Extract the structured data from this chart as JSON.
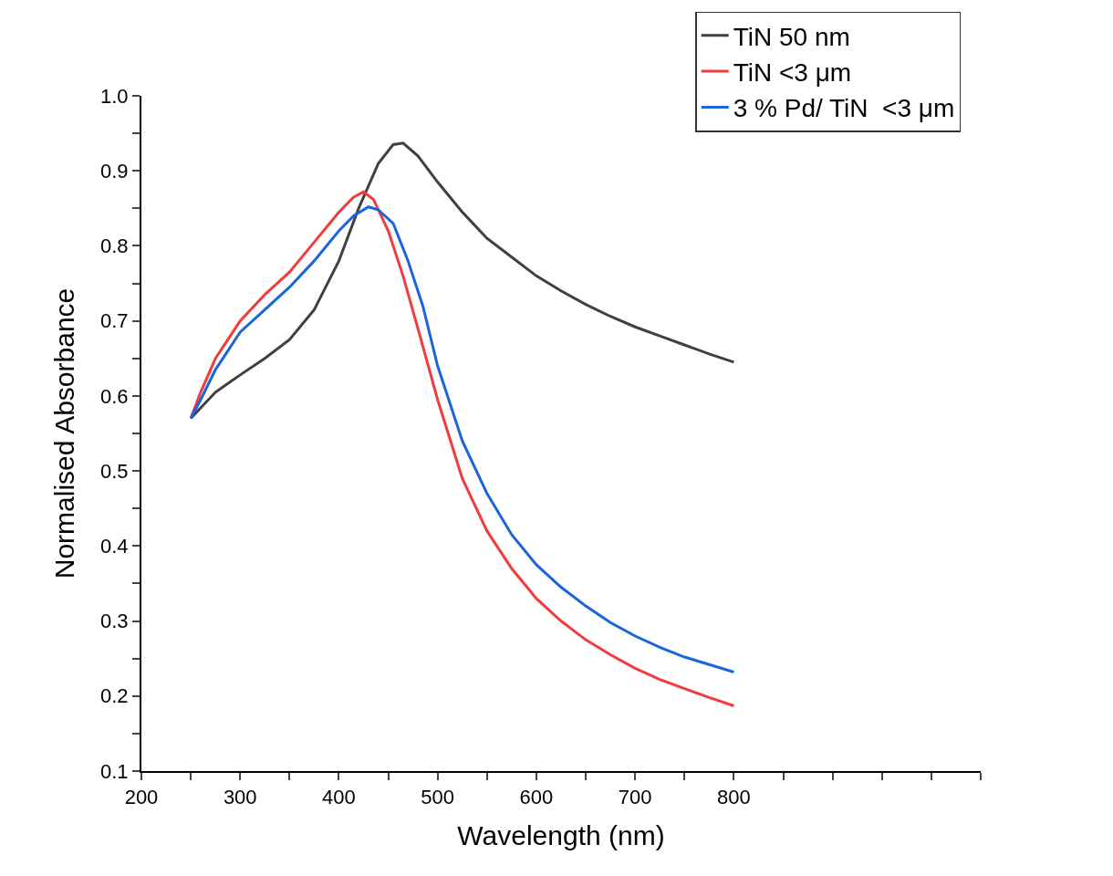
{
  "chart_data": {
    "type": "line",
    "xlabel": "Wavelength (nm)",
    "ylabel": "Normalised Absorbance",
    "xlim": [
      200,
      1050
    ],
    "xticks": [
      200,
      {
        "value": 250,
        "label": null
      },
      300,
      {
        "value": 350,
        "label": null
      },
      400,
      {
        "value": 450,
        "label": null
      },
      500,
      {
        "value": 550,
        "label": null
      },
      600,
      {
        "value": 650,
        "label": null
      },
      700,
      {
        "value": 750,
        "label": null
      },
      800,
      {
        "value": 850,
        "label": null
      },
      {
        "value": 900,
        "label": null
      },
      {
        "value": 950,
        "label": null
      },
      {
        "value": 1000,
        "label": null
      },
      {
        "value": 1050,
        "label": null
      }
    ],
    "ylim": [
      0.1,
      1.0
    ],
    "yticks": [
      0.1,
      {
        "value": 0.15,
        "label": null
      },
      0.2,
      {
        "value": 0.25,
        "label": null
      },
      0.3,
      {
        "value": 0.35,
        "label": null
      },
      0.4,
      {
        "value": 0.45,
        "label": null
      },
      0.5,
      {
        "value": 0.55,
        "label": null
      },
      0.6,
      {
        "value": 0.65,
        "label": null
      },
      0.7,
      {
        "value": 0.75,
        "label": null
      },
      0.8,
      {
        "value": 0.85,
        "label": null
      },
      0.9,
      {
        "value": 0.95,
        "label": null
      },
      {
        "value": 1.0,
        "label": "1.0"
      }
    ],
    "grid": false,
    "legend": "top right",
    "marker": "none",
    "line_style": "solid",
    "series": [
      {
        "name": "TiN 50 nm",
        "color": "#404040",
        "x": [
          250,
          275,
          300,
          325,
          350,
          375,
          400,
          420,
          440,
          455,
          465,
          480,
          500,
          525,
          550,
          575,
          600,
          625,
          650,
          675,
          700,
          725,
          750,
          775,
          800
        ],
        "values": [
          0.57,
          0.605,
          0.628,
          0.65,
          0.675,
          0.715,
          0.78,
          0.85,
          0.91,
          0.935,
          0.937,
          0.92,
          0.885,
          0.845,
          0.81,
          0.785,
          0.76,
          0.74,
          0.722,
          0.706,
          0.692,
          0.68,
          0.668,
          0.656,
          0.645
        ]
      },
      {
        "name": "TiN <3 μm",
        "color": "#f03c3c",
        "x": [
          250,
          260,
          275,
          300,
          325,
          350,
          375,
          400,
          415,
          425,
          435,
          450,
          465,
          480,
          500,
          525,
          550,
          575,
          600,
          625,
          650,
          675,
          700,
          725,
          750,
          775,
          800
        ],
        "values": [
          0.57,
          0.605,
          0.65,
          0.7,
          0.735,
          0.765,
          0.805,
          0.845,
          0.865,
          0.872,
          0.862,
          0.82,
          0.76,
          0.69,
          0.595,
          0.49,
          0.42,
          0.37,
          0.33,
          0.3,
          0.275,
          0.255,
          0.237,
          0.222,
          0.21,
          0.198,
          0.187
        ]
      },
      {
        "name": "3 % Pd/ TiN  <3 μm",
        "color": "#1a64dc",
        "x": [
          250,
          260,
          275,
          300,
          325,
          350,
          375,
          400,
          415,
          430,
          440,
          455,
          470,
          485,
          500,
          525,
          550,
          575,
          600,
          625,
          650,
          675,
          700,
          725,
          750,
          775,
          800
        ],
        "values": [
          0.57,
          0.595,
          0.635,
          0.685,
          0.715,
          0.745,
          0.78,
          0.82,
          0.84,
          0.852,
          0.848,
          0.83,
          0.78,
          0.72,
          0.64,
          0.54,
          0.47,
          0.415,
          0.375,
          0.345,
          0.32,
          0.298,
          0.28,
          0.265,
          0.252,
          0.242,
          0.232
        ]
      }
    ]
  }
}
